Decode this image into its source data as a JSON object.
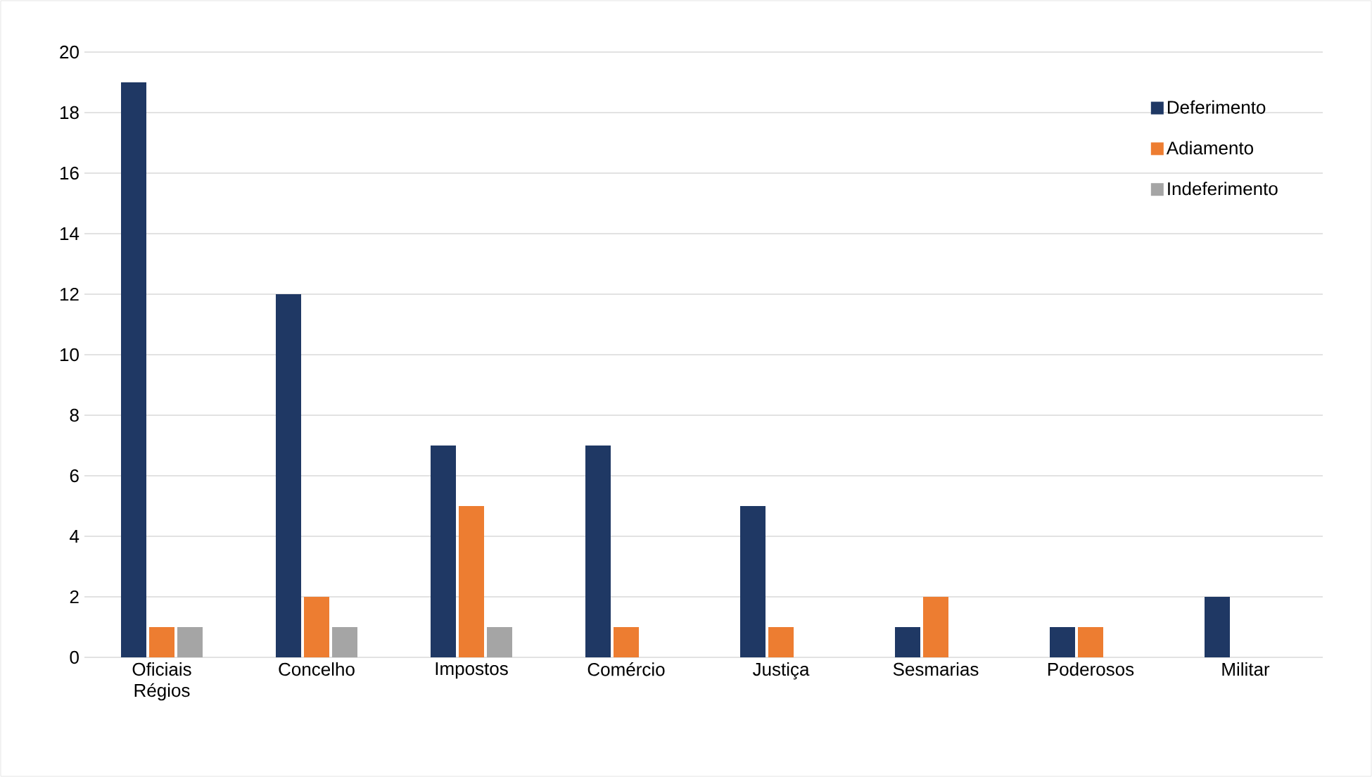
{
  "chart_data": {
    "type": "bar",
    "categories": [
      "Oficiais Régios",
      "Concelho",
      "Impostos",
      "Comércio",
      "Justiça",
      "Sesmarias",
      "Poderosos",
      "Militar"
    ],
    "series": [
      {
        "name": "Deferimento",
        "color": "#1f3864",
        "values": [
          19,
          12,
          7,
          7,
          5,
          1,
          1,
          2
        ]
      },
      {
        "name": "Adiamento",
        "color": "#ed7d31",
        "values": [
          1,
          2,
          5,
          1,
          1,
          2,
          1,
          0
        ]
      },
      {
        "name": "Indeferimento",
        "color": "#a5a5a5",
        "values": [
          1,
          1,
          1,
          0,
          0,
          0,
          0,
          0
        ]
      }
    ],
    "ylim": [
      0,
      20
    ],
    "yticks": [
      0,
      2,
      4,
      6,
      8,
      10,
      12,
      14,
      16,
      18,
      20
    ],
    "grid": "y",
    "legend": "top right"
  }
}
